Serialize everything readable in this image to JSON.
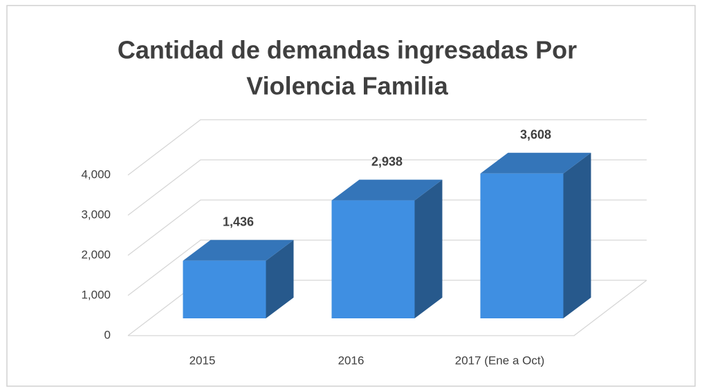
{
  "chart_data": {
    "type": "bar3d",
    "title": [
      "Cantidad de demandas ingresadas Por",
      "Violencia Familia"
    ],
    "categories": [
      "2015",
      "2016",
      "2017 (Ene a Oct)"
    ],
    "values": [
      1436,
      2938,
      3608
    ],
    "value_labels": [
      "1,436",
      "2,938",
      "3,608"
    ],
    "color": "#3f8fe2",
    "ylim": [
      0,
      4000
    ],
    "yticks": [
      0,
      {
        "value": 1000,
        "label": "1,000"
      },
      {
        "value": 2000,
        "label": "2,000"
      },
      {
        "value": 3000,
        "label": "3,000"
      },
      {
        "value": 4000,
        "label": "4,000"
      }
    ],
    "grid": true
  }
}
